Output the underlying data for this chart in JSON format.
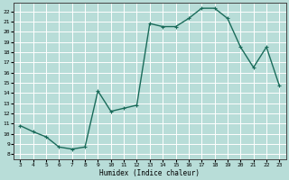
{
  "xlabel": "Humidex (Indice chaleur)",
  "background_color": "#b8ddd8",
  "grid_color": "#ffffff",
  "line_color": "#1a6b5a",
  "x_data": [
    3,
    4,
    5,
    6,
    7,
    8,
    9,
    10,
    11,
    12,
    13,
    14,
    15,
    16,
    17,
    18,
    19,
    20,
    21,
    22,
    23
  ],
  "y_data": [
    10.8,
    10.2,
    9.7,
    8.7,
    8.5,
    8.7,
    14.2,
    12.2,
    12.5,
    12.8,
    20.8,
    20.5,
    20.5,
    21.3,
    22.3,
    22.3,
    21.3,
    18.5,
    16.5,
    18.5,
    14.7
  ],
  "xlim": [
    2.5,
    23.5
  ],
  "ylim": [
    7.5,
    22.8
  ],
  "xticks": [
    3,
    4,
    5,
    6,
    7,
    8,
    9,
    10,
    11,
    12,
    13,
    14,
    15,
    16,
    17,
    18,
    19,
    20,
    21,
    22,
    23
  ],
  "yticks": [
    8,
    9,
    10,
    11,
    12,
    13,
    14,
    15,
    16,
    17,
    18,
    19,
    20,
    21,
    22
  ]
}
